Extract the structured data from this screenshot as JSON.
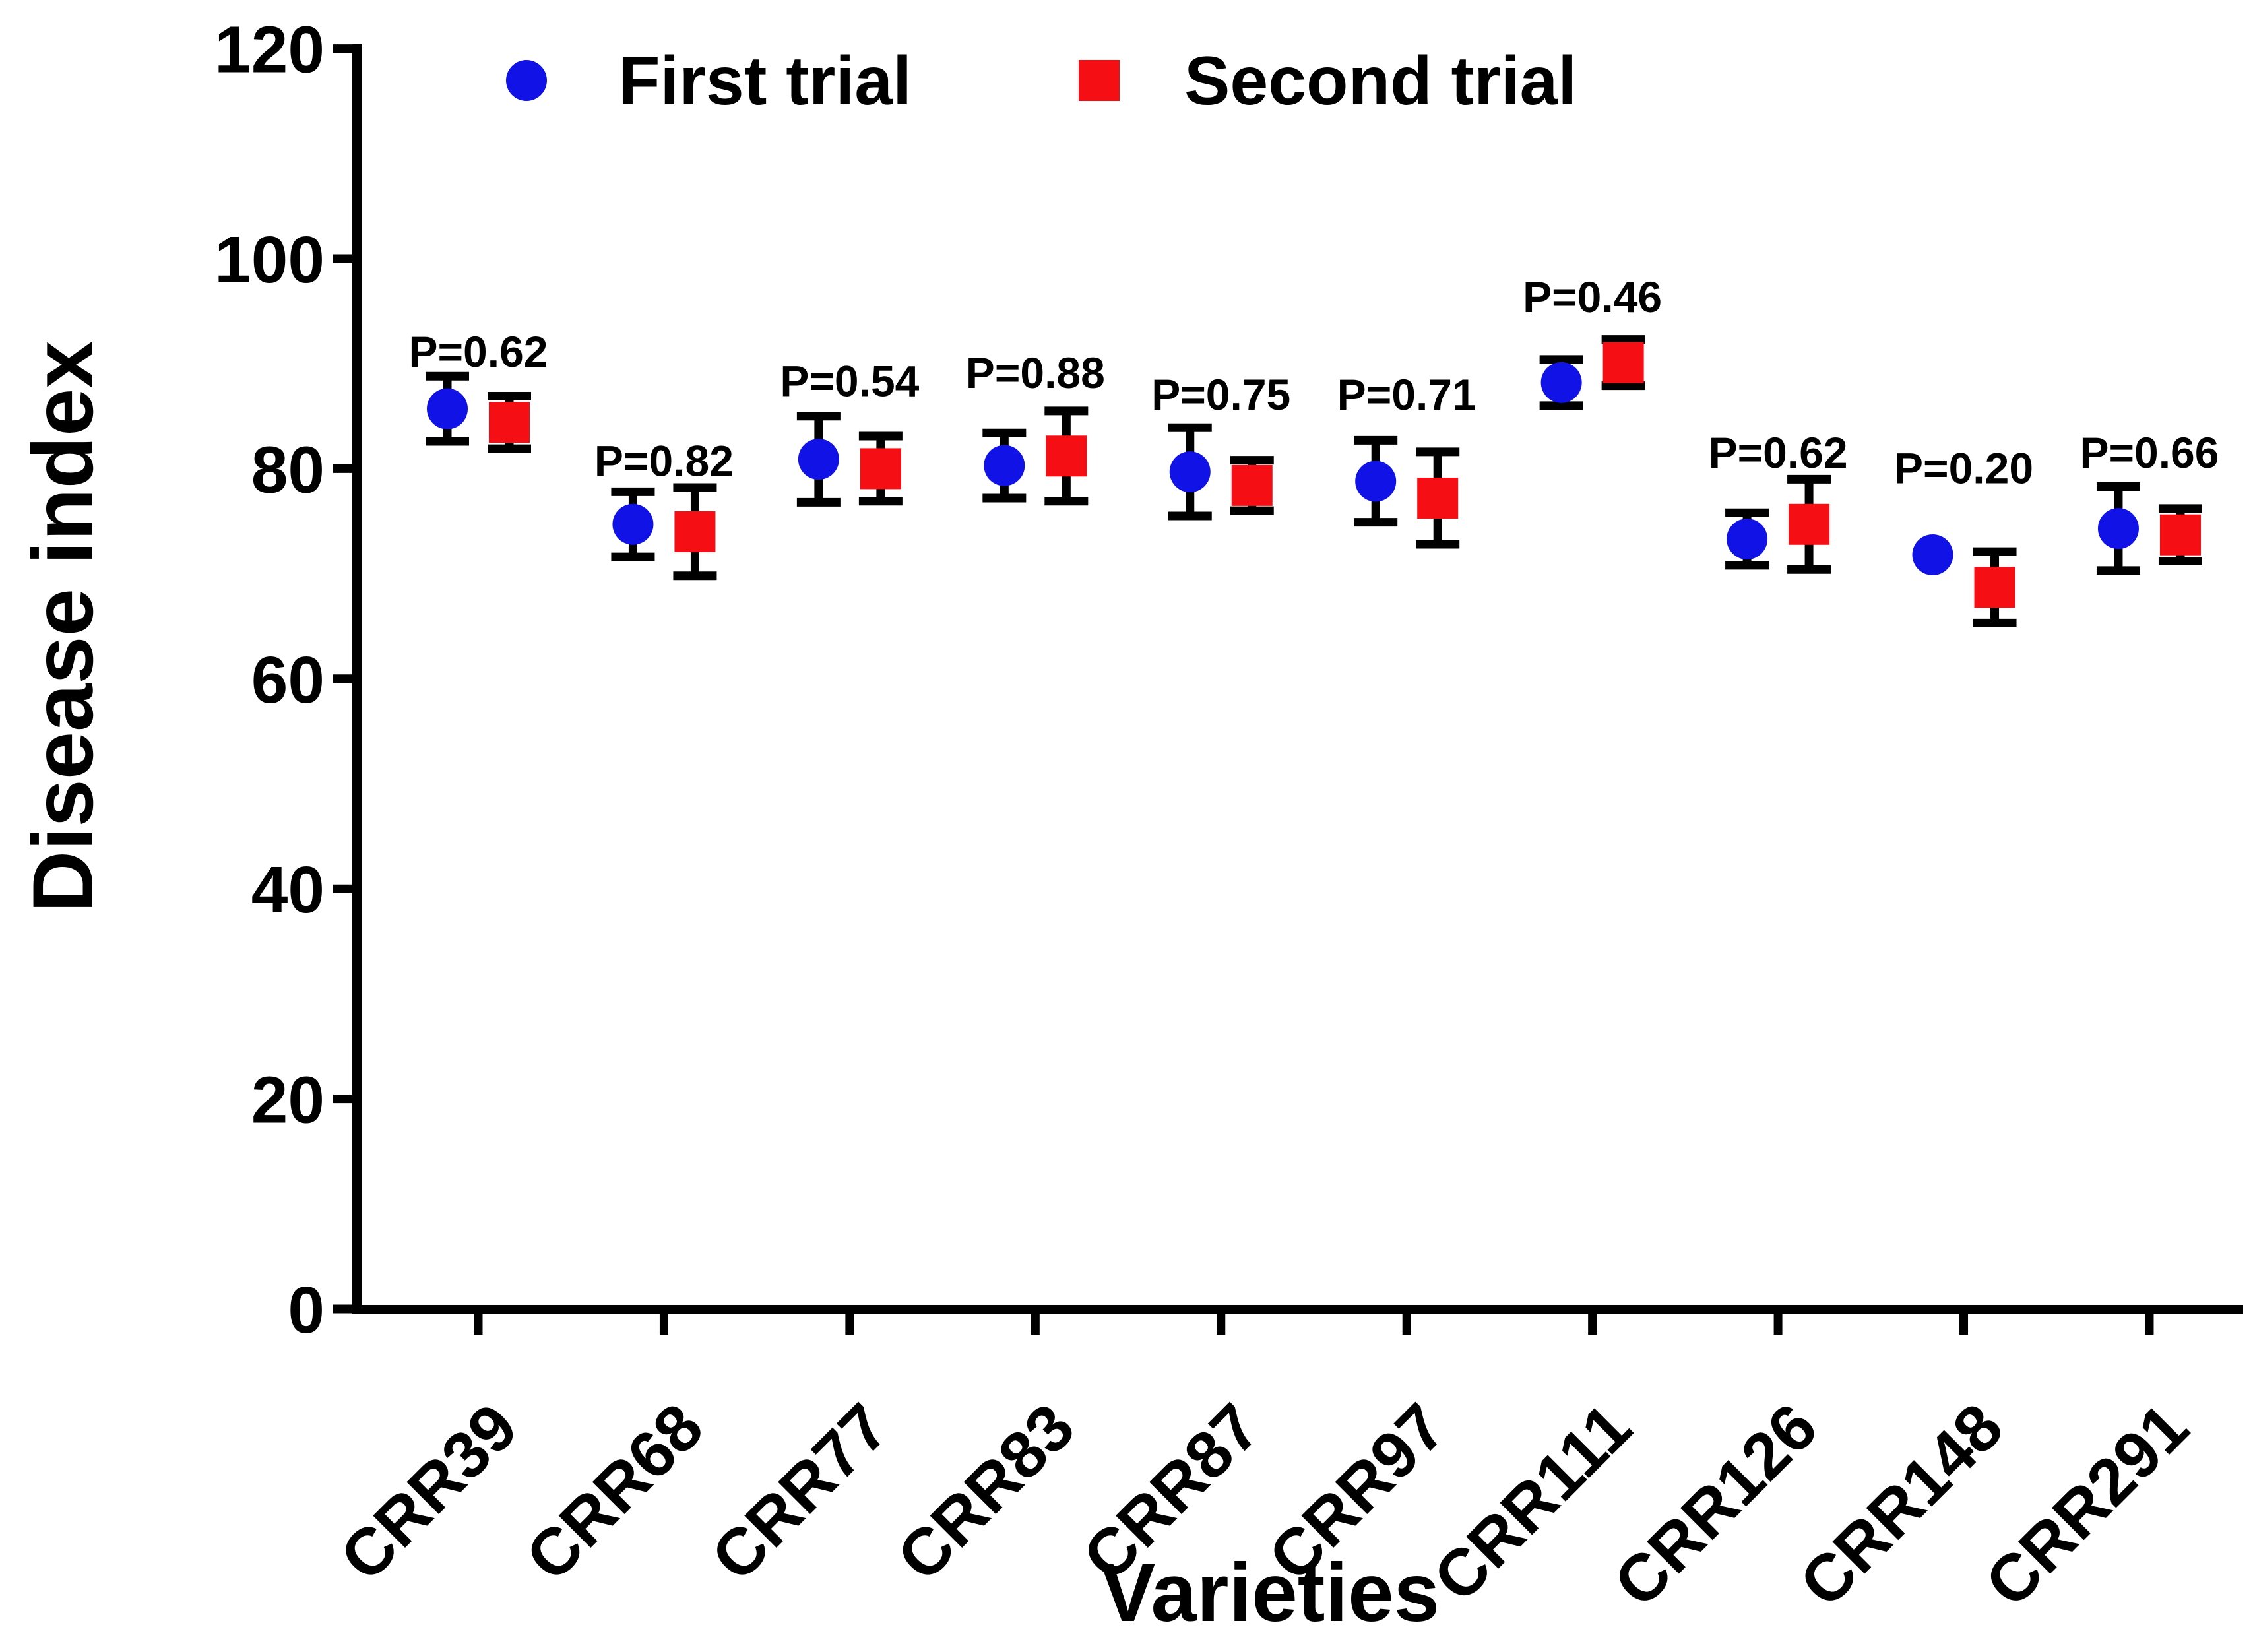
{
  "figure": {
    "background": "#ffffff"
  },
  "chart_data": {
    "type": "scatter",
    "title": "",
    "xlabel": "Varieties",
    "ylabel": "Disease index",
    "ylim": [
      0,
      120
    ],
    "yticks": [
      0,
      20,
      40,
      60,
      80,
      100,
      120
    ],
    "grid": false,
    "legend_position": "top-inside",
    "axis_color": "#000000",
    "error_bar_color": "#000000",
    "categories": [
      "CRR39",
      "CRR68",
      "CRR77",
      "CRR83",
      "CRR87",
      "CRR97",
      "CRR111",
      "CRR126",
      "CRR148",
      "CRR291"
    ],
    "series": [
      {
        "name": "First trial",
        "marker": "circle",
        "color": "#1012e6",
        "values": [
          85.7,
          74.7,
          80.9,
          80.3,
          79.7,
          78.8,
          88.2,
          73.3,
          71.8,
          74.3
        ],
        "errors": [
          3.1,
          3.1,
          4.1,
          3.1,
          4.2,
          3.9,
          2.2,
          2.5,
          0,
          4.0
        ]
      },
      {
        "name": "Second trial",
        "marker": "square",
        "color": "#f50f14",
        "values": [
          84.4,
          74.0,
          80.0,
          81.2,
          78.4,
          77.2,
          90.1,
          74.7,
          68.7,
          73.7
        ],
        "errors": [
          2.5,
          4.2,
          3.1,
          4.3,
          2.4,
          4.4,
          2.2,
          4.3,
          3.4,
          2.5
        ]
      }
    ],
    "p_labels": [
      "P=0.62",
      "P=0.82",
      "P=0.54",
      "P=0.88",
      "P=0.75",
      "P=0.71",
      "P=0.46",
      "P=0.62",
      "P=0.20",
      "P=0.66"
    ],
    "p_label_y": [
      89.7,
      79.3,
      86.9,
      87.7,
      85.6,
      85.6,
      94.9,
      80.1,
      78.6,
      80.1
    ]
  }
}
